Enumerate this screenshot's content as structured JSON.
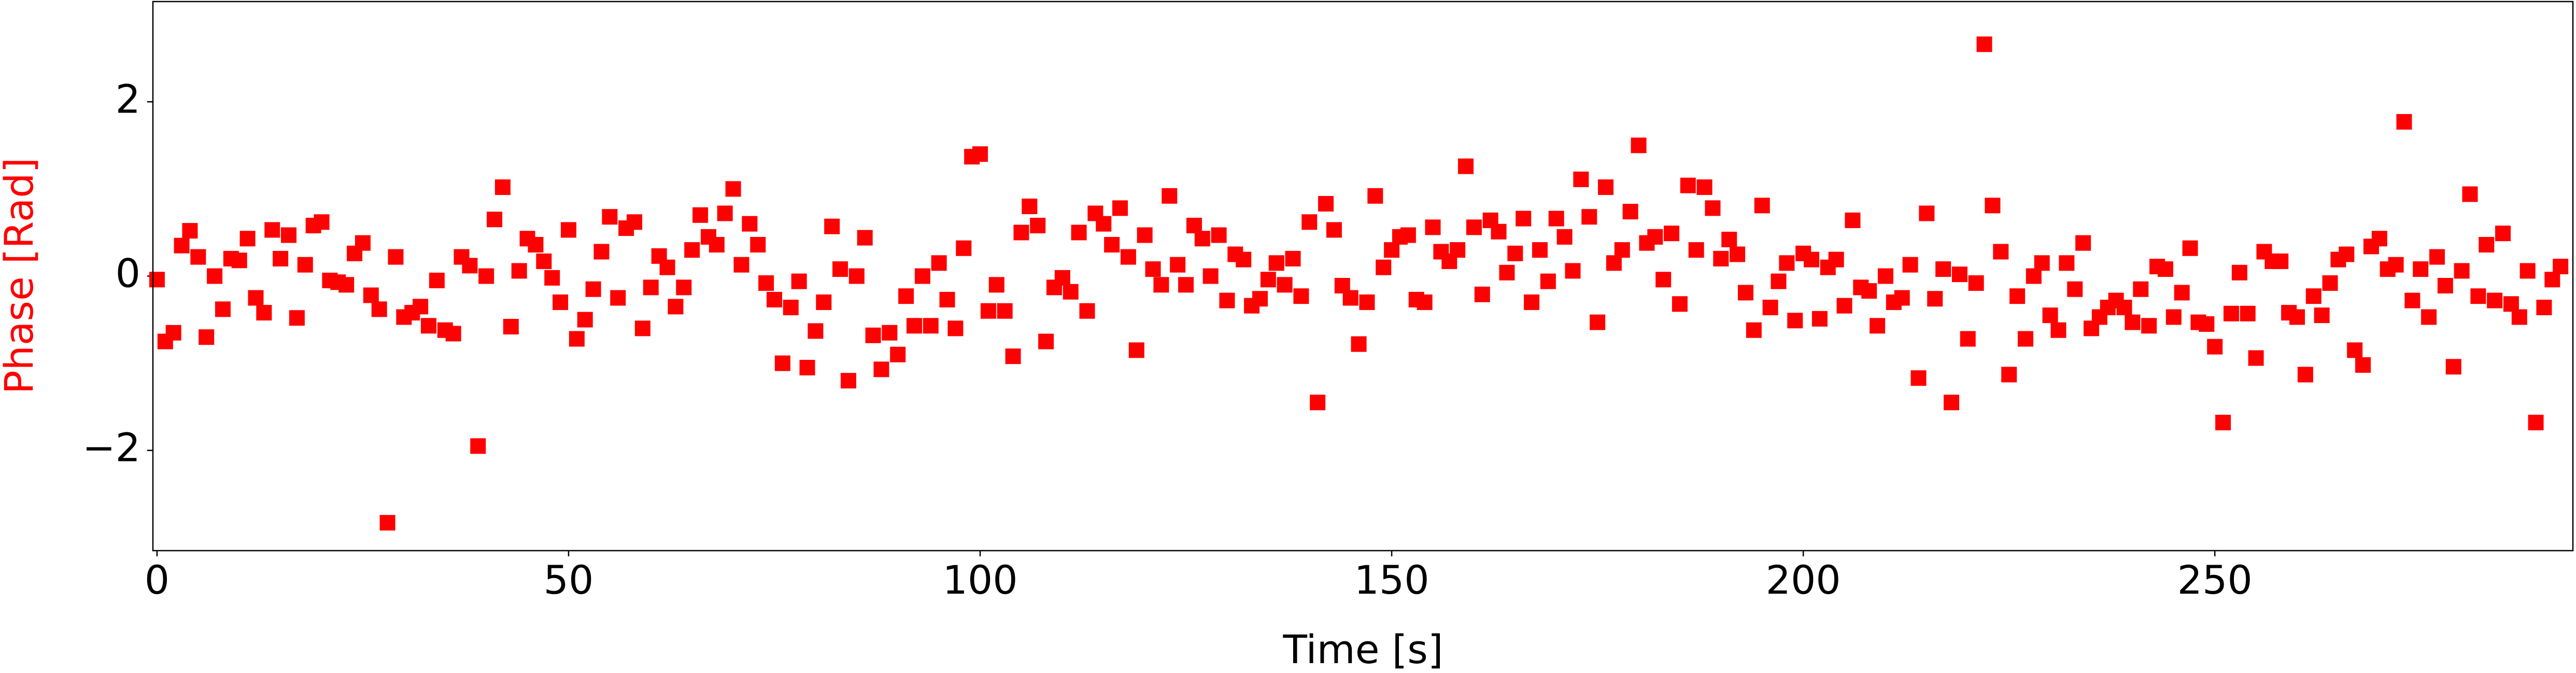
{
  "chart_data": {
    "type": "scatter",
    "xlabel": "Time [s]",
    "ylabel": "Phase [Rad]",
    "ylabel_color": "#ff0000",
    "xlim": [
      -0.5,
      293.5
    ],
    "ylim": [
      -3.15,
      3.15
    ],
    "xticks": [
      0,
      50,
      100,
      150,
      200,
      250
    ],
    "yticks": [
      {
        "value": -2,
        "label": "−2"
      },
      0,
      2
    ],
    "series": [
      {
        "name": "Phase",
        "color": "#ff0000",
        "x": [
          0,
          1,
          2,
          3,
          4,
          5,
          6,
          7,
          8,
          9,
          10,
          11,
          12,
          13,
          14,
          15,
          16,
          17,
          18,
          19,
          20,
          21,
          22,
          23,
          24,
          25,
          26,
          27,
          28,
          29,
          30,
          31,
          32,
          33,
          34,
          35,
          36,
          37,
          38,
          39,
          40,
          41,
          42,
          43,
          44,
          45,
          46,
          47,
          48,
          49,
          50,
          51,
          52,
          53,
          54,
          55,
          56,
          57,
          58,
          59,
          60,
          61,
          62,
          63,
          64,
          65,
          66,
          67,
          68,
          69,
          70,
          71,
          72,
          73,
          74,
          75,
          76,
          77,
          78,
          79,
          80,
          81,
          82,
          83,
          84,
          85,
          86,
          87,
          88,
          89,
          90,
          91,
          92,
          93,
          94,
          95,
          96,
          97,
          98,
          99,
          100,
          101,
          102,
          103,
          104,
          105,
          106,
          107,
          108,
          109,
          110,
          111,
          112,
          113,
          114,
          115,
          116,
          117,
          118,
          119,
          120,
          121,
          122,
          123,
          124,
          125,
          126,
          127,
          128,
          129,
          130,
          131,
          132,
          133,
          134,
          135,
          136,
          137,
          138,
          139,
          140,
          141,
          142,
          143,
          144,
          145,
          146,
          147,
          148,
          149,
          150,
          151,
          152,
          153,
          154,
          155,
          156,
          157,
          158,
          159,
          160,
          161,
          162,
          163,
          164,
          165,
          166,
          167,
          168,
          169,
          170,
          171,
          172,
          173,
          174,
          175,
          176,
          177,
          178,
          179,
          180,
          181,
          182,
          183,
          184,
          185,
          186,
          187,
          188,
          189,
          190,
          191,
          192,
          193,
          194,
          195,
          196,
          197,
          198,
          199,
          200,
          201,
          202,
          203,
          204,
          205,
          206,
          207,
          208,
          209,
          210,
          211,
          212,
          213,
          214,
          215,
          216,
          217,
          218,
          219,
          220,
          221,
          222,
          223,
          224,
          225,
          226,
          227,
          228,
          229,
          230,
          231,
          232,
          233,
          234,
          235,
          236,
          237,
          238,
          239,
          240,
          241,
          242,
          243,
          244,
          245,
          246,
          247,
          248,
          249,
          250,
          251,
          252,
          253,
          254,
          255,
          256,
          257,
          258,
          259,
          260,
          261,
          262,
          263,
          264,
          265,
          266,
          267,
          268,
          269,
          270,
          271,
          272,
          273,
          274,
          275,
          276,
          277,
          278,
          279,
          280,
          281,
          282,
          283,
          284,
          285,
          286,
          287,
          288,
          289,
          290,
          291,
          292
        ],
        "values": [
          -0.04,
          -0.75,
          -0.65,
          0.35,
          0.52,
          0.22,
          -0.7,
          0.0,
          -0.38,
          0.2,
          0.18,
          0.43,
          -0.25,
          -0.42,
          0.53,
          0.2,
          0.47,
          -0.48,
          0.13,
          0.58,
          0.62,
          -0.05,
          -0.07,
          -0.1,
          0.26,
          0.38,
          -0.22,
          -0.38,
          -2.83,
          0.22,
          -0.47,
          -0.42,
          -0.35,
          -0.57,
          -0.05,
          -0.62,
          -0.66,
          0.22,
          0.12,
          -1.95,
          0.0,
          0.65,
          1.02,
          -0.58,
          0.06,
          0.43,
          0.36,
          0.17,
          -0.02,
          -0.3,
          0.53,
          -0.72,
          -0.5,
          -0.15,
          0.28,
          0.68,
          -0.25,
          0.55,
          0.62,
          -0.6,
          -0.13,
          0.23,
          0.1,
          -0.35,
          -0.13,
          0.3,
          0.7,
          0.45,
          0.36,
          0.72,
          1.0,
          0.13,
          0.6,
          0.36,
          -0.08,
          -0.27,
          -1.0,
          -0.36,
          -0.06,
          -1.05,
          -0.63,
          -0.3,
          0.57,
          0.08,
          -1.2,
          0.0,
          0.44,
          -0.68,
          -1.07,
          -0.65,
          -0.9,
          -0.23,
          -0.57,
          0.0,
          -0.57,
          0.15,
          -0.27,
          -0.6,
          0.32,
          1.37,
          1.4,
          -0.4,
          -0.1,
          -0.4,
          -0.92,
          0.5,
          0.8,
          0.58,
          -0.75,
          -0.13,
          -0.02,
          -0.18,
          0.5,
          -0.4,
          0.72,
          0.6,
          0.36,
          0.78,
          0.22,
          -0.85,
          0.47,
          0.08,
          -0.1,
          0.92,
          0.13,
          -0.1,
          0.58,
          0.43,
          0.0,
          0.47,
          -0.28,
          0.25,
          0.19,
          -0.34,
          -0.26,
          -0.04,
          0.15,
          -0.1,
          0.2,
          -0.23,
          0.62,
          -1.45,
          0.83,
          0.53,
          -0.11,
          -0.25,
          -0.78,
          -0.3,
          0.92,
          0.1,
          0.3,
          0.45,
          0.47,
          -0.27,
          -0.3,
          0.56,
          0.28,
          0.17,
          0.3,
          1.26,
          0.56,
          -0.21,
          0.64,
          0.51,
          0.04,
          0.26,
          0.66,
          -0.3,
          0.3,
          -0.06,
          0.66,
          0.45,
          0.06,
          1.11,
          0.68,
          -0.53,
          1.02,
          0.15,
          0.3,
          0.74,
          1.5,
          0.38,
          0.45,
          -0.04,
          0.49,
          -0.32,
          1.04,
          0.3,
          1.02,
          0.78,
          0.2,
          0.42,
          0.25,
          -0.19,
          -0.62,
          0.81,
          -0.36,
          -0.06,
          0.15,
          -0.51,
          0.26,
          0.19,
          -0.49,
          0.1,
          0.19,
          -0.34,
          0.64,
          -0.13,
          -0.17,
          -0.57,
          0.0,
          -0.3,
          -0.25,
          0.13,
          -1.17,
          0.72,
          -0.26,
          0.08,
          -1.45,
          0.02,
          -0.72,
          -0.08,
          2.66,
          0.81,
          0.28,
          -1.13,
          -0.23,
          -0.72,
          0.0,
          0.15,
          -0.45,
          -0.62,
          0.15,
          -0.15,
          0.38,
          -0.6,
          -0.47,
          -0.36,
          -0.28,
          -0.36,
          -0.53,
          -0.15,
          -0.57,
          0.11,
          0.08,
          -0.47,
          -0.19,
          0.32,
          -0.53,
          -0.55,
          -0.81,
          -1.68,
          -0.43,
          0.04,
          -0.43,
          -0.94,
          0.28,
          0.17,
          0.17,
          -0.42,
          -0.47,
          -1.13,
          -0.23,
          -0.45,
          -0.08,
          0.19,
          0.25,
          -0.85,
          -1.02,
          0.34,
          0.43,
          0.08,
          0.13,
          1.77,
          -0.28,
          0.08,
          -0.47,
          0.22,
          -0.11,
          -1.04,
          0.06,
          0.94,
          -0.23,
          0.36,
          -0.28,
          0.49,
          -0.32,
          -0.47,
          0.06,
          -1.68,
          -0.36,
          -0.04,
          0.11
        ]
      }
    ]
  }
}
